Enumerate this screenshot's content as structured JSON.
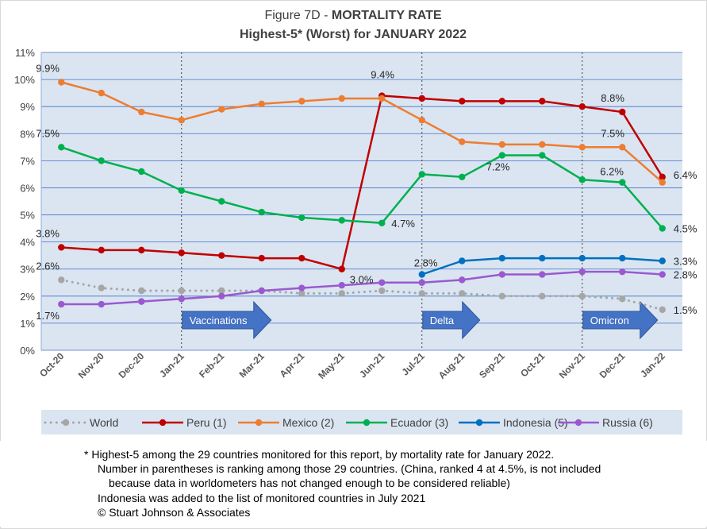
{
  "chart_data": {
    "type": "line",
    "title_prefix": "Figure 7D  - ",
    "title_bold": "MORTALITY RATE",
    "subtitle": "Highest-5* (Worst) for JANUARY 2022",
    "categories": [
      "Oct-20",
      "Nov-20",
      "Dec-20",
      "Jan-21",
      "Feb-21",
      "Mar-21",
      "Apr-21",
      "May-21",
      "Jun-21",
      "Jul-21",
      "Aug-21",
      "Sep-21",
      "Oct-21",
      "Nov-21",
      "Dec-21",
      "Jan-22"
    ],
    "y_ticks": [
      "0%",
      "1%",
      "2%",
      "3%",
      "4%",
      "5%",
      "6%",
      "7%",
      "8%",
      "9%",
      "10%",
      "11%"
    ],
    "ylim": [
      0,
      11
    ],
    "grid": true,
    "legend_position": "bottom",
    "series": [
      {
        "name": "World",
        "color": "#a6a6a6",
        "dotted": true,
        "values": [
          2.6,
          2.3,
          2.2,
          2.2,
          2.2,
          2.2,
          2.1,
          2.1,
          2.2,
          2.1,
          2.1,
          2.0,
          2.0,
          2.0,
          1.9,
          1.5
        ]
      },
      {
        "name": "Peru (1)",
        "color": "#c00000",
        "values": [
          3.8,
          3.7,
          3.7,
          3.6,
          3.5,
          3.4,
          3.4,
          3.0,
          9.4,
          9.3,
          9.2,
          9.2,
          9.2,
          9.0,
          8.8,
          6.4
        ]
      },
      {
        "name": "Mexico (2)",
        "color": "#ed7d31",
        "values": [
          9.9,
          9.5,
          8.8,
          8.5,
          8.9,
          9.1,
          9.2,
          9.3,
          9.3,
          8.5,
          7.7,
          7.6,
          7.6,
          7.5,
          7.5,
          6.2
        ]
      },
      {
        "name": "Ecuador (3)",
        "color": "#00b050",
        "values": [
          7.5,
          7.0,
          6.6,
          5.9,
          5.5,
          5.1,
          4.9,
          4.8,
          4.7,
          6.5,
          6.4,
          7.2,
          7.2,
          6.3,
          6.2,
          4.5
        ]
      },
      {
        "name": "Indonesia (5)",
        "color": "#0070c0",
        "values": [
          null,
          null,
          null,
          null,
          null,
          null,
          null,
          null,
          null,
          2.8,
          3.3,
          3.4,
          3.4,
          3.4,
          3.4,
          3.3
        ]
      },
      {
        "name": "Russia (6)",
        "color": "#9b59d0",
        "values": [
          1.7,
          1.7,
          1.8,
          1.9,
          2.0,
          2.2,
          2.3,
          2.4,
          2.5,
          2.5,
          2.6,
          2.8,
          2.8,
          2.9,
          2.9,
          2.8
        ]
      }
    ],
    "data_labels": [
      {
        "text": "9.9%",
        "x": "Oct-20",
        "y": 9.9
      },
      {
        "text": "7.5%",
        "x": "Oct-20",
        "y": 7.5
      },
      {
        "text": "3.8%",
        "x": "Oct-20",
        "y": 3.8
      },
      {
        "text": "2.6%",
        "x": "Oct-20",
        "y": 2.6
      },
      {
        "text": "1.7%",
        "x": "Oct-20",
        "y": 1.7
      },
      {
        "text": "3.0%",
        "x": "May-21",
        "y": 3.0
      },
      {
        "text": "9.4%",
        "x": "Jun-21",
        "y": 9.4
      },
      {
        "text": "4.7%",
        "x": "Jun-21",
        "y": 4.7
      },
      {
        "text": "2.8%",
        "x": "Jul-21",
        "y": 2.8
      },
      {
        "text": "7.2%",
        "x": "Sep-21",
        "y": 7.2
      },
      {
        "text": "8.8%",
        "x": "Dec-21",
        "y": 8.8
      },
      {
        "text": "7.5%",
        "x": "Dec-21",
        "y": 7.5
      },
      {
        "text": "6.2%",
        "x": "Dec-21",
        "y": 6.2
      },
      {
        "text": "6.4%",
        "x": "Jan-22",
        "y": 6.4
      },
      {
        "text": "4.5%",
        "x": "Jan-22",
        "y": 4.5
      },
      {
        "text": "3.3%",
        "x": "Jan-22",
        "y": 3.3
      },
      {
        "text": "2.8%",
        "x": "Jan-22",
        "y": 2.8
      },
      {
        "text": "1.5%",
        "x": "Jan-22",
        "y": 1.5
      }
    ],
    "annotations": [
      {
        "text": "Vaccinations",
        "x": "Jan-21"
      },
      {
        "text": "Delta",
        "x": "Jul-21"
      },
      {
        "text": "Omicron",
        "x": "Nov-21"
      }
    ],
    "annotation_color": "#4472c4"
  },
  "notes": {
    "line1": "* Highest-5 among the 29 countries monitored for this report, by mortality rate for January 2022.",
    "line2": "Number in parentheses is ranking among those 29 countries.  (China, ranked 4 at 4.5%, is not included",
    "line3": "because data in worldometers has not changed enough to be considered reliable)",
    "line4": "Indonesia was added to the list of monitored countries in July 2021",
    "line5": "© Stuart Johnson & Associates"
  }
}
